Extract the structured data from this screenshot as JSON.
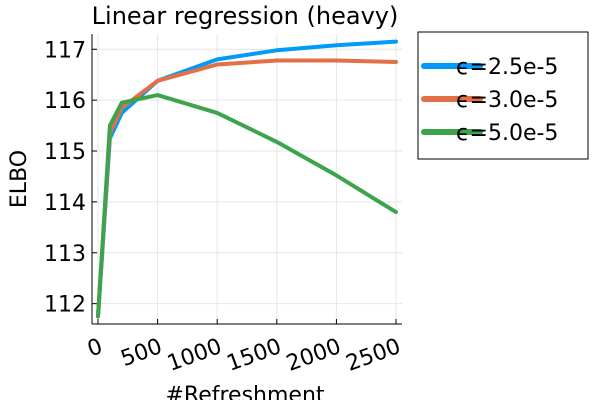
{
  "chart_data": {
    "type": "line",
    "title": "Linear regression (heavy)",
    "xlabel": "#Refreshment",
    "ylabel": "ELBO",
    "xlim": [
      -50,
      2550
    ],
    "ylim": [
      111.6,
      117.3
    ],
    "xticks": [
      0,
      500,
      1000,
      1500,
      2000,
      2500
    ],
    "yticks": [
      112,
      113,
      114,
      115,
      116,
      117
    ],
    "grid": true,
    "legend_position": "outer-right",
    "series": [
      {
        "name": "ϵ=2.5e-5",
        "color": "#009AFA",
        "x": [
          0,
          100,
          200,
          500,
          1000,
          1500,
          2000,
          2500
        ],
        "y": [
          111.75,
          115.25,
          115.75,
          116.38,
          116.8,
          116.98,
          117.08,
          117.15
        ]
      },
      {
        "name": "ϵ=3.0e-5",
        "color": "#E26F46",
        "x": [
          0,
          100,
          200,
          500,
          1000,
          1500,
          2000,
          2500
        ],
        "y": [
          111.75,
          115.35,
          115.85,
          116.38,
          116.7,
          116.78,
          116.78,
          116.75
        ]
      },
      {
        "name": "ϵ=5.0e-5",
        "color": "#3DA44D",
        "x": [
          0,
          100,
          200,
          500,
          1000,
          1500,
          2000,
          2500
        ],
        "y": [
          111.75,
          115.5,
          115.95,
          116.1,
          115.75,
          115.18,
          114.52,
          113.8
        ]
      }
    ]
  }
}
